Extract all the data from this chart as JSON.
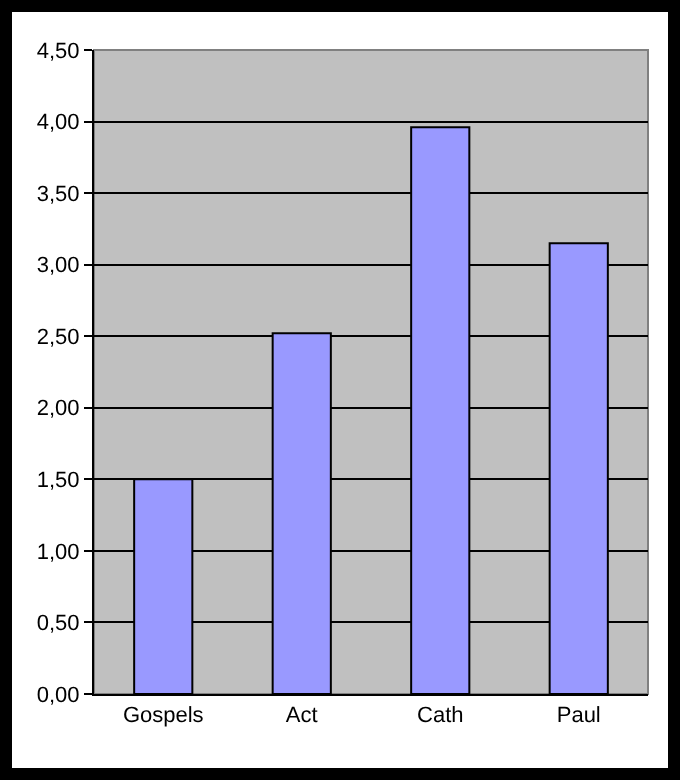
{
  "chart_data": {
    "type": "bar",
    "categories": [
      "Gospels",
      "Act",
      "Cath",
      "Paul"
    ],
    "values": [
      1.5,
      2.52,
      3.96,
      3.15
    ],
    "color": "#9999ff",
    "ylim": [
      0,
      4.5
    ],
    "yticks": [
      {
        "value": 0,
        "label": "0,00"
      },
      {
        "value": 0.5,
        "label": "0,50"
      },
      {
        "value": 1,
        "label": "1,00"
      },
      {
        "value": 1.5,
        "label": "1,50"
      },
      {
        "value": 2,
        "label": "2,00"
      },
      {
        "value": 2.5,
        "label": "2,50"
      },
      {
        "value": 3,
        "label": "3,00"
      },
      {
        "value": 3.5,
        "label": "3,50"
      },
      {
        "value": 4,
        "label": "4,00"
      },
      {
        "value": 4.5,
        "label": "4,50"
      }
    ],
    "grid": "y",
    "legend": false
  }
}
